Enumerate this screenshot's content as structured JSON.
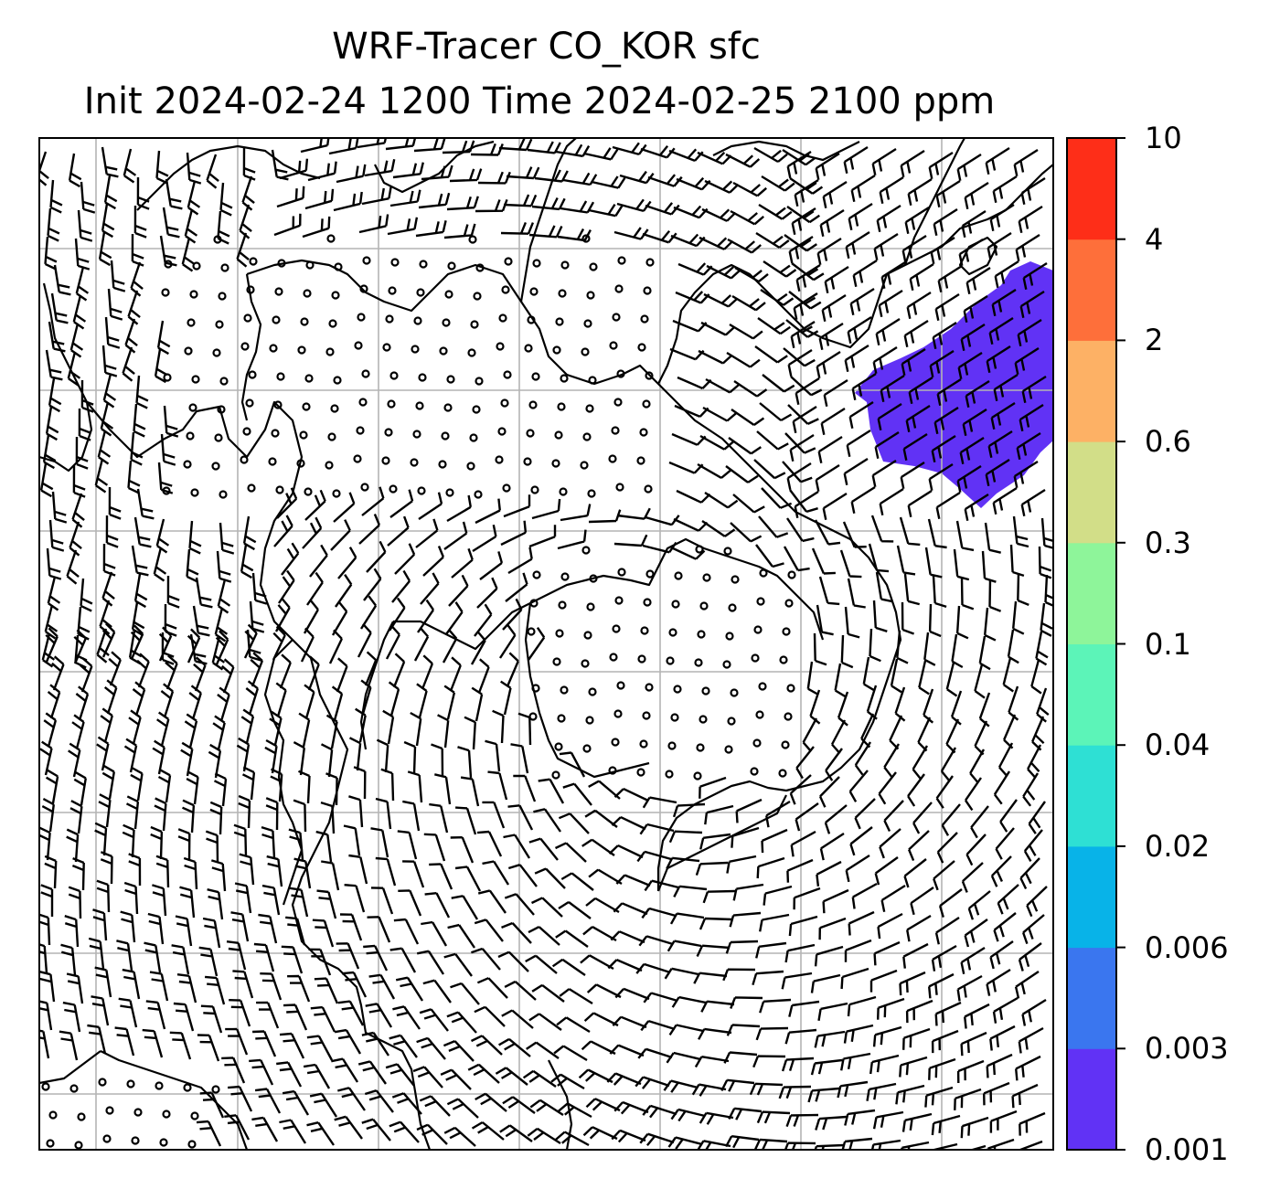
{
  "title": {
    "line1": "WRF-Tracer CO_KOR sfc",
    "line2": "Init 2024-02-24 1200 Time 2024-02-25 2100 ppm"
  },
  "colorbar": {
    "levels": [
      {
        "label": "0.001",
        "color": "#6132f5"
      },
      {
        "label": "0.003",
        "color": "#3a76ef"
      },
      {
        "label": "0.006",
        "color": "#08b3e8"
      },
      {
        "label": "0.02",
        "color": "#2ee0d4"
      },
      {
        "label": "0.04",
        "color": "#5cf4b8"
      },
      {
        "label": "0.1",
        "color": "#8ef59a"
      },
      {
        "label": "0.3",
        "color": "#d2de88"
      },
      {
        "label": "0.6",
        "color": "#fdb165"
      },
      {
        "label": "2",
        "color": "#fe6f3a"
      },
      {
        "label": "4",
        "color": "#fe2e18"
      },
      {
        "label": "10",
        "color": null
      }
    ]
  },
  "map": {
    "tracer_plume_color": "#6132f5",
    "gridline_color": "#b4b4b4",
    "coastline_color": "#000000",
    "wind_barbs": true
  }
}
